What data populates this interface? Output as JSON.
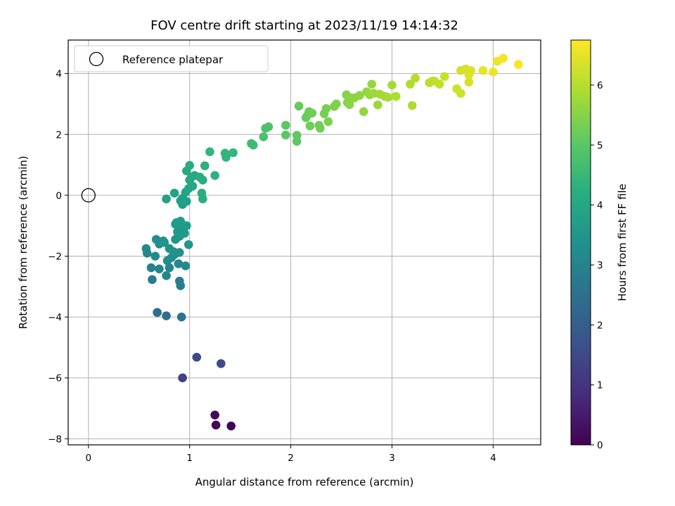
{
  "chart_data": {
    "type": "scatter",
    "title": "FOV centre drift starting at 2023/11/19 14:14:32",
    "xlabel": "Angular distance from reference (arcmin)",
    "ylabel": "Rotation from reference (arcmin)",
    "xlim": [
      -0.2,
      4.47
    ],
    "ylim": [
      -8.2,
      5.1
    ],
    "xticks": [
      0,
      1,
      2,
      3,
      4
    ],
    "yticks": [
      -8,
      -6,
      -4,
      -2,
      0,
      2,
      4
    ],
    "grid": true,
    "legend": {
      "placement": "top-left",
      "entries": [
        "Reference platepar"
      ]
    },
    "reference_point": {
      "x": 0,
      "y": 0,
      "marker": "open-circle"
    },
    "colorbar": {
      "label": "Hours from first FF file",
      "range": [
        0,
        6.75
      ],
      "ticks": [
        0,
        1,
        2,
        3,
        4,
        5,
        6
      ],
      "colormap": "viridis"
    },
    "points": [
      [
        1.41,
        -7.58,
        0.05
      ],
      [
        1.26,
        -7.55,
        0.1
      ],
      [
        1.25,
        -7.22,
        0.15
      ],
      [
        0.93,
        -6.0,
        1.3
      ],
      [
        1.07,
        -5.32,
        1.5
      ],
      [
        1.31,
        -5.53,
        1.55
      ],
      [
        0.68,
        -3.85,
        2.4
      ],
      [
        0.77,
        -3.96,
        2.45
      ],
      [
        0.92,
        -4.0,
        2.6
      ],
      [
        0.63,
        -2.77,
        2.8
      ],
      [
        0.9,
        -2.82,
        2.85
      ],
      [
        0.91,
        -2.97,
        2.9
      ],
      [
        0.62,
        -2.38,
        3.0
      ],
      [
        0.7,
        -2.42,
        3.05
      ],
      [
        0.77,
        -2.64,
        3.05
      ],
      [
        0.8,
        -2.38,
        3.1
      ],
      [
        0.89,
        -2.25,
        3.1
      ],
      [
        0.96,
        -2.32,
        3.15
      ],
      [
        0.58,
        -1.9,
        3.15
      ],
      [
        0.57,
        -1.75,
        3.2
      ],
      [
        0.66,
        -2.0,
        3.2
      ],
      [
        0.78,
        -2.15,
        3.25
      ],
      [
        0.82,
        -2.05,
        3.3
      ],
      [
        0.85,
        -1.95,
        3.3
      ],
      [
        0.67,
        -1.45,
        3.35
      ],
      [
        0.7,
        -1.6,
        3.35
      ],
      [
        0.74,
        -1.5,
        3.4
      ],
      [
        0.8,
        -1.75,
        3.4
      ],
      [
        0.84,
        -1.85,
        3.45
      ],
      [
        0.9,
        -1.88,
        3.45
      ],
      [
        0.75,
        -1.55,
        3.5
      ],
      [
        0.86,
        -1.45,
        3.5
      ],
      [
        0.9,
        -1.35,
        3.55
      ],
      [
        0.99,
        -1.62,
        3.55
      ],
      [
        0.88,
        -1.2,
        3.6
      ],
      [
        0.92,
        -1.1,
        3.6
      ],
      [
        0.95,
        -1.25,
        3.65
      ],
      [
        0.86,
        -0.95,
        3.65
      ],
      [
        0.87,
        -0.9,
        3.7
      ],
      [
        0.91,
        -0.85,
        3.7
      ],
      [
        0.97,
        -1.0,
        3.7
      ],
      [
        0.93,
        -0.3,
        3.75
      ],
      [
        0.91,
        -0.18,
        3.8
      ],
      [
        0.93,
        -0.1,
        3.8
      ],
      [
        0.97,
        -0.2,
        3.85
      ],
      [
        0.77,
        -0.12,
        3.85
      ],
      [
        0.85,
        0.07,
        3.9
      ],
      [
        0.96,
        0.1,
        3.9
      ],
      [
        0.99,
        0.22,
        3.95
      ],
      [
        1.03,
        0.3,
        4.0
      ],
      [
        1.0,
        0.5,
        4.0
      ],
      [
        1.02,
        0.6,
        4.05
      ],
      [
        1.05,
        0.65,
        4.05
      ],
      [
        0.97,
        0.8,
        4.1
      ],
      [
        1.0,
        0.98,
        4.1
      ],
      [
        1.1,
        0.6,
        4.15
      ],
      [
        1.13,
        0.5,
        4.15
      ],
      [
        1.12,
        0.07,
        4.2
      ],
      [
        1.13,
        -0.12,
        4.2
      ],
      [
        1.15,
        0.97,
        4.25
      ],
      [
        1.25,
        0.65,
        4.3
      ],
      [
        1.2,
        1.43,
        4.4
      ],
      [
        1.35,
        1.38,
        4.45
      ],
      [
        1.36,
        1.25,
        4.45
      ],
      [
        1.43,
        1.4,
        4.5
      ],
      [
        1.61,
        1.7,
        4.6
      ],
      [
        1.63,
        1.65,
        4.65
      ],
      [
        1.73,
        1.92,
        4.8
      ],
      [
        1.75,
        2.2,
        4.85
      ],
      [
        1.78,
        2.25,
        4.85
      ],
      [
        1.95,
        2.3,
        5.0
      ],
      [
        1.95,
        1.98,
        5.0
      ],
      [
        2.06,
        1.97,
        5.05
      ],
      [
        2.06,
        1.77,
        5.05
      ],
      [
        2.08,
        2.93,
        5.15
      ],
      [
        2.15,
        2.55,
        5.15
      ],
      [
        2.17,
        2.65,
        5.2
      ],
      [
        2.18,
        2.75,
        5.2
      ],
      [
        2.19,
        2.28,
        5.25
      ],
      [
        2.21,
        2.7,
        5.25
      ],
      [
        2.28,
        2.3,
        5.3
      ],
      [
        2.29,
        2.2,
        5.3
      ],
      [
        2.33,
        2.68,
        5.35
      ],
      [
        2.35,
        2.85,
        5.35
      ],
      [
        2.37,
        2.42,
        5.4
      ],
      [
        2.43,
        2.92,
        5.4
      ],
      [
        2.45,
        3.0,
        5.45
      ],
      [
        2.55,
        3.3,
        5.5
      ],
      [
        2.56,
        3.05,
        5.5
      ],
      [
        2.58,
        2.98,
        5.55
      ],
      [
        2.6,
        3.2,
        5.55
      ],
      [
        2.63,
        3.2,
        5.6
      ],
      [
        2.68,
        3.28,
        5.6
      ],
      [
        2.72,
        2.75,
        5.65
      ],
      [
        2.75,
        3.4,
        5.65
      ],
      [
        2.78,
        3.3,
        5.7
      ],
      [
        2.8,
        3.65,
        5.7
      ],
      [
        2.82,
        3.35,
        5.75
      ],
      [
        2.86,
        2.97,
        5.75
      ],
      [
        2.88,
        3.32,
        5.8
      ],
      [
        2.93,
        3.25,
        5.8
      ],
      [
        2.96,
        3.22,
        5.85
      ],
      [
        3.0,
        3.62,
        5.85
      ],
      [
        3.04,
        3.25,
        5.9
      ],
      [
        3.18,
        3.65,
        5.95
      ],
      [
        3.2,
        2.95,
        5.95
      ],
      [
        3.23,
        3.85,
        6.0
      ],
      [
        3.37,
        3.7,
        6.05
      ],
      [
        3.4,
        3.75,
        6.05
      ],
      [
        3.42,
        3.75,
        6.1
      ],
      [
        3.47,
        3.65,
        6.15
      ],
      [
        3.52,
        3.9,
        6.2
      ],
      [
        3.64,
        3.5,
        6.25
      ],
      [
        3.68,
        3.35,
        6.25
      ],
      [
        3.68,
        4.1,
        6.3
      ],
      [
        3.73,
        4.15,
        6.35
      ],
      [
        3.76,
        3.72,
        6.35
      ],
      [
        3.76,
        3.95,
        6.4
      ],
      [
        3.78,
        4.1,
        6.4
      ],
      [
        3.9,
        4.1,
        6.5
      ],
      [
        4.0,
        4.05,
        6.55
      ],
      [
        4.04,
        4.4,
        6.6
      ],
      [
        4.1,
        4.5,
        6.65
      ],
      [
        4.25,
        4.3,
        6.7
      ]
    ]
  }
}
